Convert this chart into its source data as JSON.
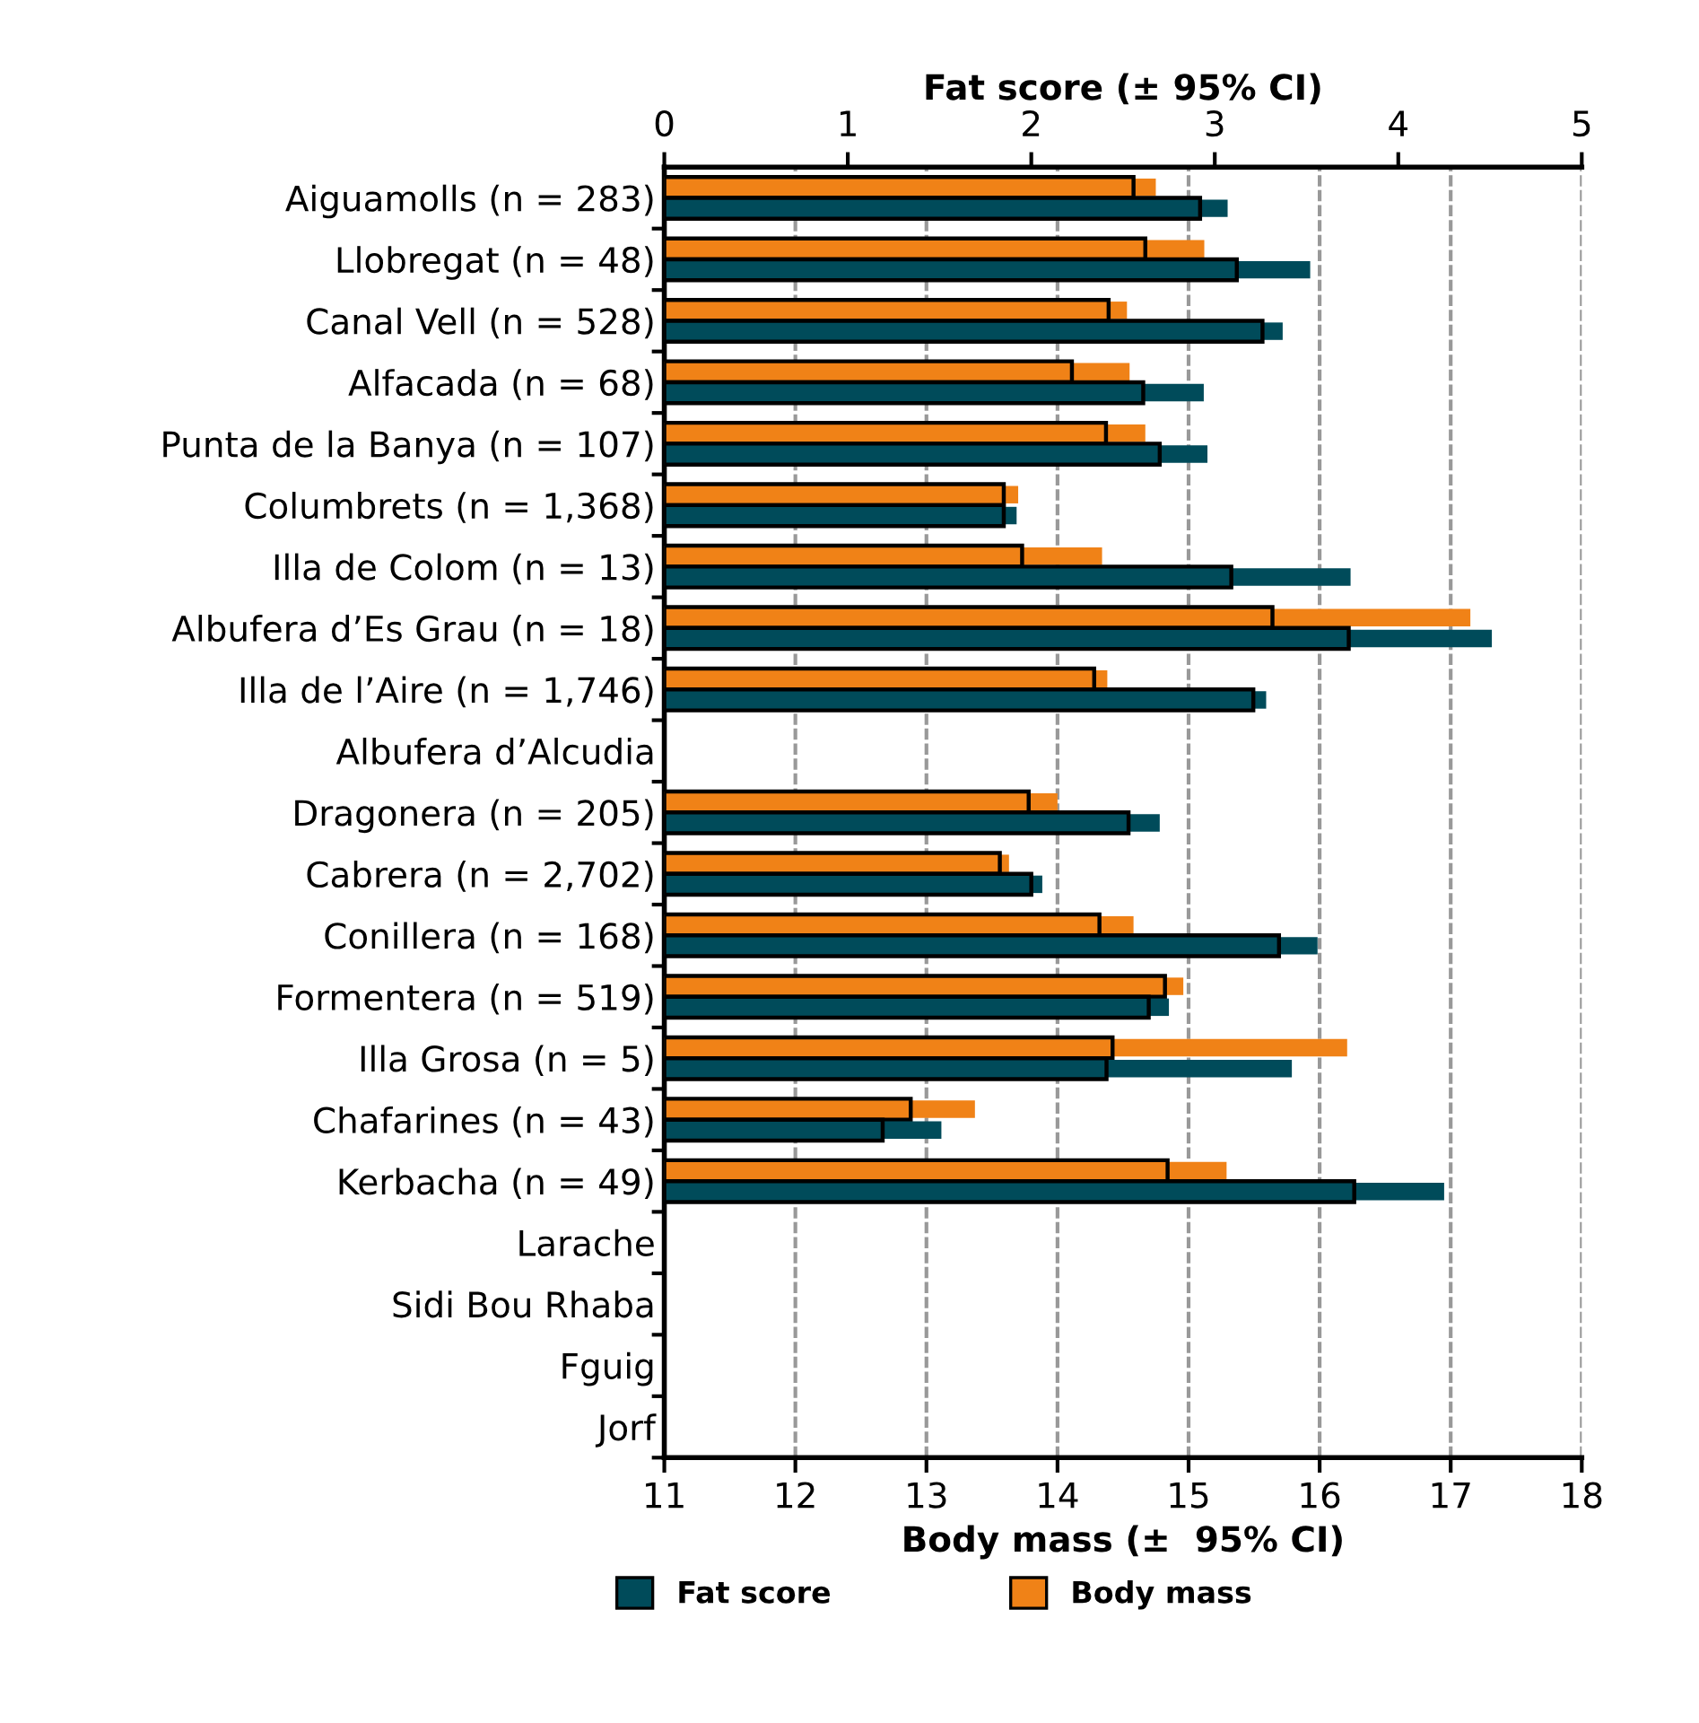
{
  "chart_data": {
    "type": "bar",
    "orientation": "horizontal",
    "xlabel": "Body mass (±  95% CI)",
    "x2label": "Fat score (± 95% CI)",
    "categories": [
      "Aiguamolls (n = 283)",
      "Llobregat (n = 48)",
      "Canal Vell (n = 528)",
      "Alfacada (n = 68)",
      "Punta de la Banya (n = 107)",
      "Columbrets (n = 1,368)",
      "Illa de Colom (n = 13)",
      "Albufera d’Es Grau (n = 18)",
      "Illa de l’Aire (n = 1,746)",
      "Albufera d’Alcudia",
      "Dragonera (n = 205)",
      "Cabrera (n = 2,702)",
      "Conillera (n = 168)",
      "Formentera (n = 519)",
      "Illa Grosa (n = 5)",
      "Chafarines (n = 43)",
      "Kerbacha (n = 49)",
      "Larache",
      "Sidi Bou Rhaba",
      "Fguig",
      "Jorf"
    ],
    "series": [
      {
        "name": "Fat score",
        "color": "#004b5a",
        "axis": "x2",
        "values": [
          2.92,
          3.12,
          3.26,
          2.61,
          2.7,
          1.85,
          3.09,
          3.73,
          3.21,
          null,
          2.53,
          2.0,
          3.35,
          2.64,
          2.41,
          1.19,
          3.76,
          null,
          null,
          null,
          null
        ],
        "errors": [
          [
            2.92,
            3.07
          ],
          [
            3.12,
            3.52
          ],
          [
            3.26,
            3.37
          ],
          [
            2.61,
            2.94
          ],
          [
            2.7,
            2.96
          ],
          [
            1.85,
            1.92
          ],
          [
            3.09,
            3.74
          ],
          [
            3.73,
            4.51
          ],
          [
            3.21,
            3.28
          ],
          null,
          [
            2.53,
            2.7
          ],
          [
            2.0,
            2.06
          ],
          [
            3.35,
            3.56
          ],
          [
            2.64,
            2.75
          ],
          [
            2.41,
            3.42
          ],
          [
            1.19,
            1.51
          ],
          [
            3.76,
            4.25
          ],
          null,
          null,
          null,
          null
        ]
      },
      {
        "name": "Body mass",
        "color": "#f08217",
        "values": [
          14.58,
          14.67,
          14.39,
          14.11,
          14.37,
          13.59,
          13.73,
          15.64,
          14.28,
          null,
          13.78,
          13.56,
          14.32,
          14.82,
          14.42,
          12.88,
          14.84,
          null,
          null,
          null,
          null
        ],
        "errors": [
          [
            14.58,
            14.75
          ],
          [
            14.67,
            15.12
          ],
          [
            14.39,
            14.53
          ],
          [
            14.11,
            14.55
          ],
          [
            14.37,
            14.67
          ],
          [
            13.59,
            13.7
          ],
          [
            13.73,
            14.34
          ],
          [
            15.64,
            17.15
          ],
          [
            14.28,
            14.38
          ],
          null,
          [
            13.78,
            14.0
          ],
          [
            13.56,
            13.63
          ],
          [
            14.32,
            14.58
          ],
          [
            14.82,
            14.96
          ],
          [
            14.42,
            16.21
          ],
          [
            12.88,
            13.37
          ],
          [
            14.84,
            15.29
          ],
          null,
          null,
          null,
          null
        ]
      }
    ],
    "xlim": [
      11,
      18
    ],
    "xticks": [
      11,
      12,
      13,
      14,
      15,
      16,
      17,
      18
    ],
    "x2lim": [
      0,
      5
    ],
    "x2ticks": [
      0,
      1,
      2,
      3,
      4,
      5
    ],
    "grid": "x",
    "legend": "bottom"
  }
}
